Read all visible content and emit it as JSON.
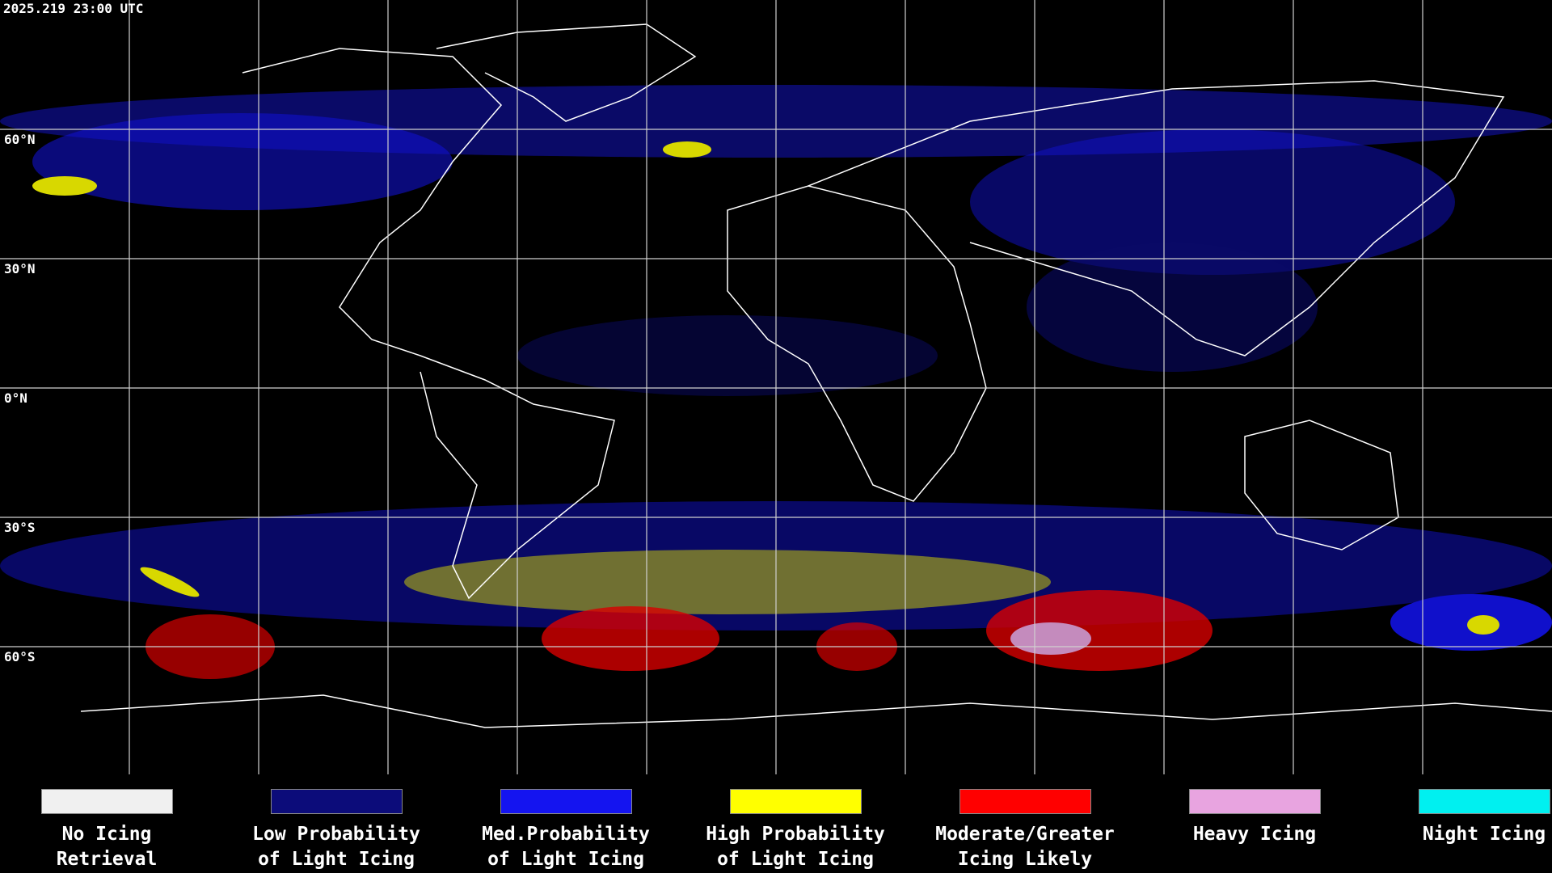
{
  "timestamp": "2025.219 23:00 UTC",
  "lat_labels": [
    "60°N",
    "30°N",
    "0°N",
    "30°S",
    "60°S"
  ],
  "legend": [
    {
      "lines": [
        "No Icing",
        "Retrieval"
      ],
      "color": "#f0f0f0"
    },
    {
      "lines": [
        "Low Probability",
        "of Light Icing"
      ],
      "color": "#0c0c7a"
    },
    {
      "lines": [
        "Med.Probability",
        "of Light Icing"
      ],
      "color": "#1414f0"
    },
    {
      "lines": [
        "High Probability",
        "of Light Icing"
      ],
      "color": "#ffff00"
    },
    {
      "lines": [
        "Moderate/Greater",
        "Icing Likely"
      ],
      "color": "#ff0000"
    },
    {
      "lines": [
        "Heavy Icing"
      ],
      "color": "#e8a4e0"
    },
    {
      "lines": [
        "Night Icing"
      ],
      "color": "#00f0f0"
    }
  ]
}
